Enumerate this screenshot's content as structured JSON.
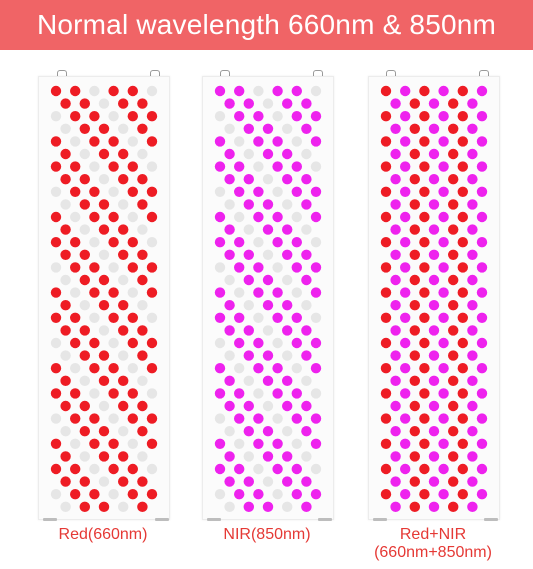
{
  "banner": {
    "title": "Normal wavelength 660nm & 850nm",
    "color": "#f06466"
  },
  "colors": {
    "red": "#ee1c24",
    "nir": "#ee22ee",
    "off": "#e6e6e6",
    "caption": "#e53935"
  },
  "panels": [
    {
      "caption_line1": "Red(660nm)",
      "caption_line2": "",
      "pattern": "red"
    },
    {
      "caption_line1": "NIR(850nm)",
      "caption_line2": "",
      "pattern": "nir"
    },
    {
      "caption_line1": "Red+NIR",
      "caption_line2": "(660nm+850nm)",
      "pattern": "mix"
    }
  ]
}
